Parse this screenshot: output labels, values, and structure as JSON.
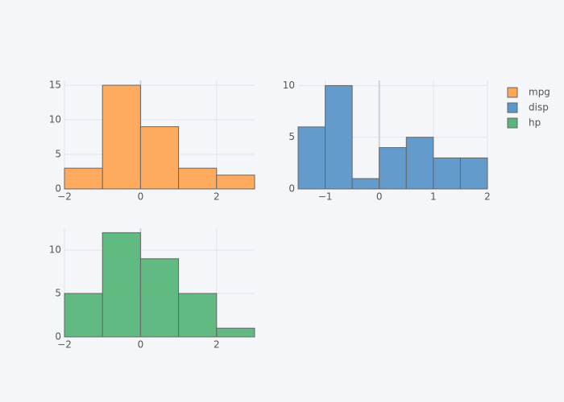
{
  "chart_data": [
    {
      "type": "histogram",
      "name": "mpg",
      "color": "#ffa656",
      "bins": [
        -2,
        -1,
        0,
        1,
        2,
        3
      ],
      "values": [
        3,
        15,
        9,
        3,
        2
      ],
      "xlim": [
        -2,
        3
      ],
      "xticks": [
        {
          "value": -2,
          "label": "−2"
        },
        0,
        2
      ],
      "ylim": [
        0,
        15.7
      ],
      "yticks": [
        0,
        5,
        10,
        15
      ],
      "grid": true
    },
    {
      "type": "histogram",
      "name": "disp",
      "color": "#5b97c9",
      "bins": [
        -1.5,
        -1,
        -0.5,
        0,
        0.5,
        1,
        1.5,
        2
      ],
      "values": [
        6,
        10,
        1,
        4,
        5,
        3,
        3
      ],
      "xlim": [
        -1.5,
        2
      ],
      "xticks": [
        {
          "value": -1,
          "label": "−1"
        },
        0,
        1,
        2
      ],
      "ylim": [
        0,
        10.5
      ],
      "yticks": [
        0,
        5,
        10
      ],
      "grid": true
    },
    {
      "type": "histogram",
      "name": "hp",
      "color": "#57b67a",
      "bins": [
        -2,
        -1,
        0,
        1,
        2,
        3
      ],
      "values": [
        5,
        12,
        9,
        5,
        1
      ],
      "xlim": [
        -2,
        3
      ],
      "xticks": [
        {
          "value": -2,
          "label": "−2"
        },
        0,
        2
      ],
      "ylim": [
        0,
        12.5
      ],
      "yticks": [
        0,
        5,
        10
      ],
      "grid": true
    }
  ]
}
